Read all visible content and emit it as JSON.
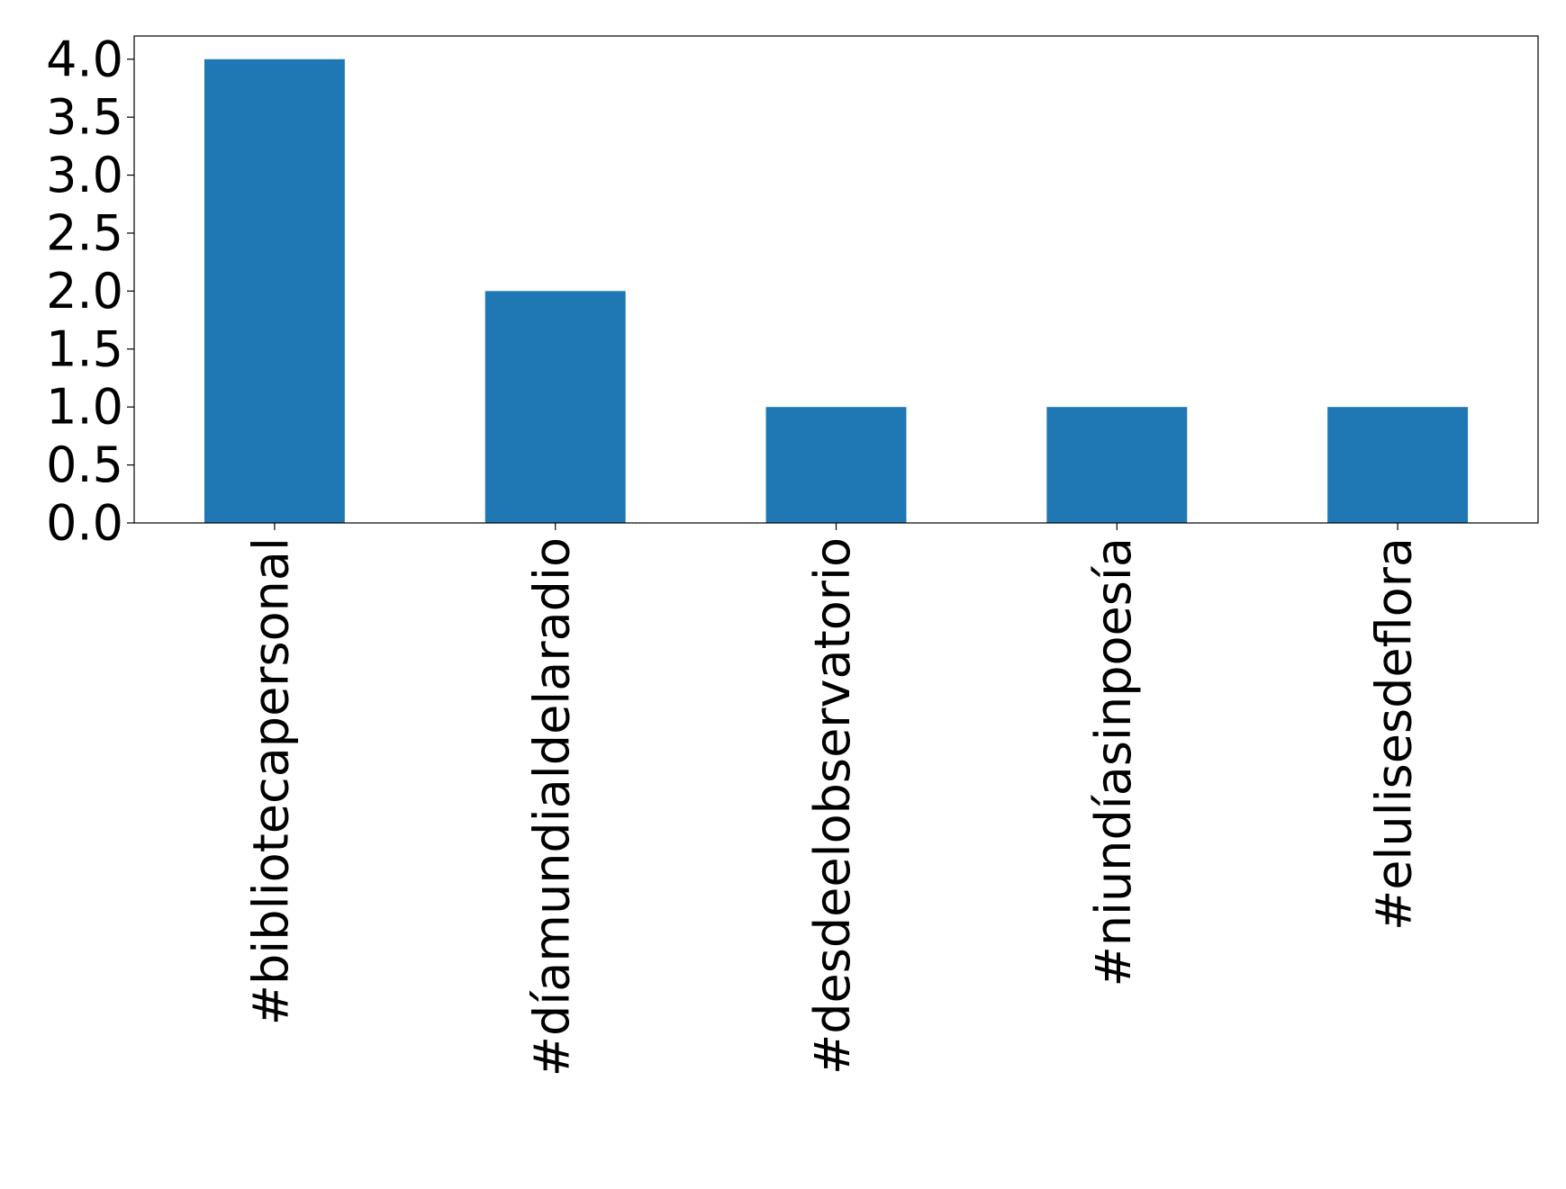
{
  "chart_data": {
    "type": "bar",
    "categories": [
      "#bibliotecapersonal",
      "#díamundialdelaradio",
      "#desdeelobservatorio",
      "#niundíasinpoesía",
      "#elulisesdeflora"
    ],
    "values": [
      4,
      2,
      1,
      1,
      1
    ],
    "color": "#1f77b4",
    "ylim": [
      0,
      4.2
    ],
    "yticks": [
      {
        "value": 0,
        "label": "0.0"
      },
      {
        "value": 0.5,
        "label": "0.5"
      },
      {
        "value": 1,
        "label": "1.0"
      },
      {
        "value": 1.5,
        "label": "1.5"
      },
      {
        "value": 2,
        "label": "2.0"
      },
      {
        "value": 2.5,
        "label": "2.5"
      },
      {
        "value": 3,
        "label": "3.0"
      },
      {
        "value": 3.5,
        "label": "3.5"
      },
      {
        "value": 4,
        "label": "4.0"
      }
    ],
    "grid": false
  }
}
